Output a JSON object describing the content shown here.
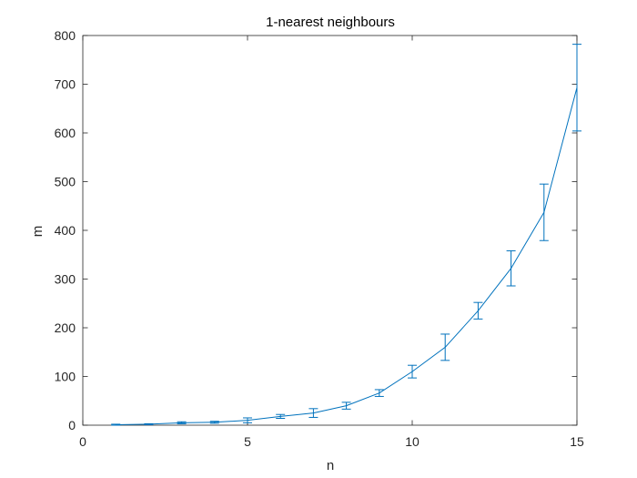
{
  "chart_data": {
    "type": "line",
    "title": "1-nearest neighbours",
    "xlabel": "n",
    "ylabel": "m",
    "xlim": [
      0,
      15
    ],
    "ylim": [
      0,
      800
    ],
    "xticks": [
      0,
      5,
      10,
      15
    ],
    "yticks": [
      0,
      100,
      200,
      300,
      400,
      500,
      600,
      700,
      800
    ],
    "grid": false,
    "legend": "none",
    "color": "#0072bd",
    "series": [
      {
        "x": [
          1,
          2,
          3,
          4,
          5,
          6,
          7,
          8,
          9,
          10,
          11,
          12,
          13,
          14,
          15
        ],
        "y": [
          1,
          2,
          5,
          6,
          10,
          18,
          25,
          40,
          66,
          110,
          160,
          235,
          322,
          437,
          693
        ],
        "error": [
          1,
          1,
          2,
          2,
          5,
          4,
          9,
          7,
          7,
          13,
          27,
          17,
          36,
          58,
          89
        ]
      }
    ]
  }
}
